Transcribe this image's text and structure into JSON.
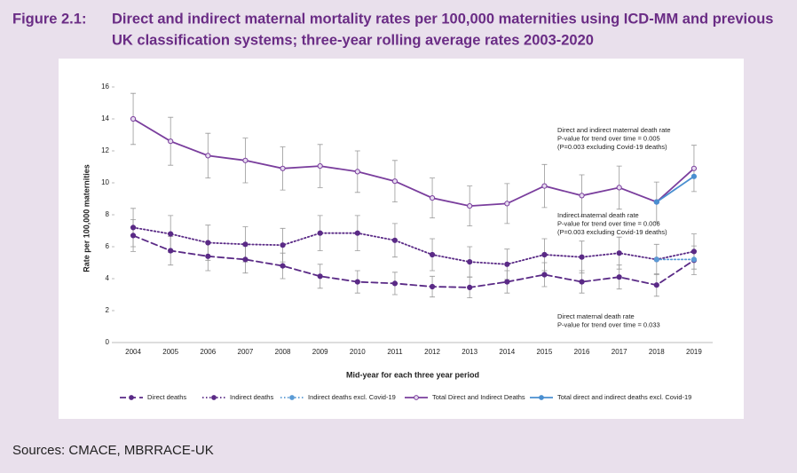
{
  "figure_label": "Figure 2.1:",
  "source": "Sources: CMACE, MBRRACE-UK",
  "chart_data": {
    "type": "line",
    "title": [
      "Direct and indirect maternal mortality rates per 100,000 maternities using ICD-MM and previous",
      "UK classification systems; three-year rolling average rates 2003-2020"
    ],
    "xlabel": "Mid-year for each three year period",
    "ylabel": "Rate per 100,000 maternities",
    "categories": [
      "2004",
      "2005",
      "2006",
      "2007",
      "2008",
      "2009",
      "2010",
      "2011",
      "2012",
      "2013",
      "2014",
      "2015",
      "2016",
      "2017",
      "2018",
      "2019"
    ],
    "ylim": [
      0,
      16
    ],
    "yticks": [
      0,
      2,
      4,
      6,
      8,
      10,
      12,
      14,
      16
    ],
    "grid": false,
    "series": [
      {
        "name": "Direct deaths",
        "color": "#5a2a86",
        "dash": "dashed",
        "values": [
          6.7,
          5.75,
          5.4,
          5.2,
          4.8,
          4.15,
          3.8,
          3.7,
          3.5,
          3.45,
          3.8,
          4.25,
          3.8,
          4.1,
          3.6,
          5.15
        ],
        "errors": [
          1.0,
          0.9,
          0.9,
          0.85,
          0.8,
          0.75,
          0.7,
          0.7,
          0.65,
          0.65,
          0.7,
          0.75,
          0.7,
          0.75,
          0.7,
          0.9
        ]
      },
      {
        "name": "Indirect deaths",
        "color": "#5a2a86",
        "dash": "dotted",
        "values": [
          7.2,
          6.8,
          6.25,
          6.15,
          6.1,
          6.85,
          6.85,
          6.4,
          5.5,
          5.05,
          4.9,
          5.5,
          5.35,
          5.6,
          5.2,
          5.7
        ],
        "errors": [
          1.2,
          1.15,
          1.1,
          1.1,
          1.05,
          1.1,
          1.1,
          1.05,
          1.0,
          0.95,
          0.95,
          1.0,
          1.0,
          1.0,
          0.95,
          1.1
        ]
      },
      {
        "name": "Indirect deaths excl. Covid-19",
        "color": "#5b9bd5",
        "dash": "dotted",
        "values": [
          null,
          null,
          null,
          null,
          null,
          null,
          null,
          null,
          null,
          null,
          null,
          null,
          null,
          null,
          5.2,
          5.2
        ]
      },
      {
        "name": "Total Direct and Indirect Deaths",
        "color": "#7a3e9d",
        "dash": "solid",
        "hollow": true,
        "values": [
          14.0,
          12.6,
          11.7,
          11.4,
          10.9,
          11.05,
          10.7,
          10.1,
          9.05,
          8.55,
          8.7,
          9.8,
          9.2,
          9.7,
          8.8,
          10.9
        ],
        "errors": [
          1.6,
          1.5,
          1.4,
          1.4,
          1.35,
          1.35,
          1.3,
          1.3,
          1.25,
          1.25,
          1.25,
          1.35,
          1.3,
          1.35,
          1.25,
          1.45
        ]
      },
      {
        "name": "Total direct and indirect deaths excl. Covid-19",
        "color": "#4a8fd0",
        "dash": "solid",
        "values": [
          null,
          null,
          null,
          null,
          null,
          null,
          null,
          null,
          null,
          null,
          null,
          null,
          null,
          null,
          8.8,
          10.4
        ]
      }
    ],
    "annotations": [
      {
        "lines": [
          "Direct and indirect maternal death rate",
          "P-value for trend over time = 0.005",
          "(P=0.003 excluding Covid-19 deaths)"
        ]
      },
      {
        "lines": [
          "Indirect maternal death rate",
          "P-value for trend over time = 0.006",
          "(P=0.003 excluding Covid-19 deaths)"
        ]
      },
      {
        "lines": [
          "Direct maternal death rate",
          "P-value for trend over time = 0.033"
        ]
      }
    ]
  }
}
